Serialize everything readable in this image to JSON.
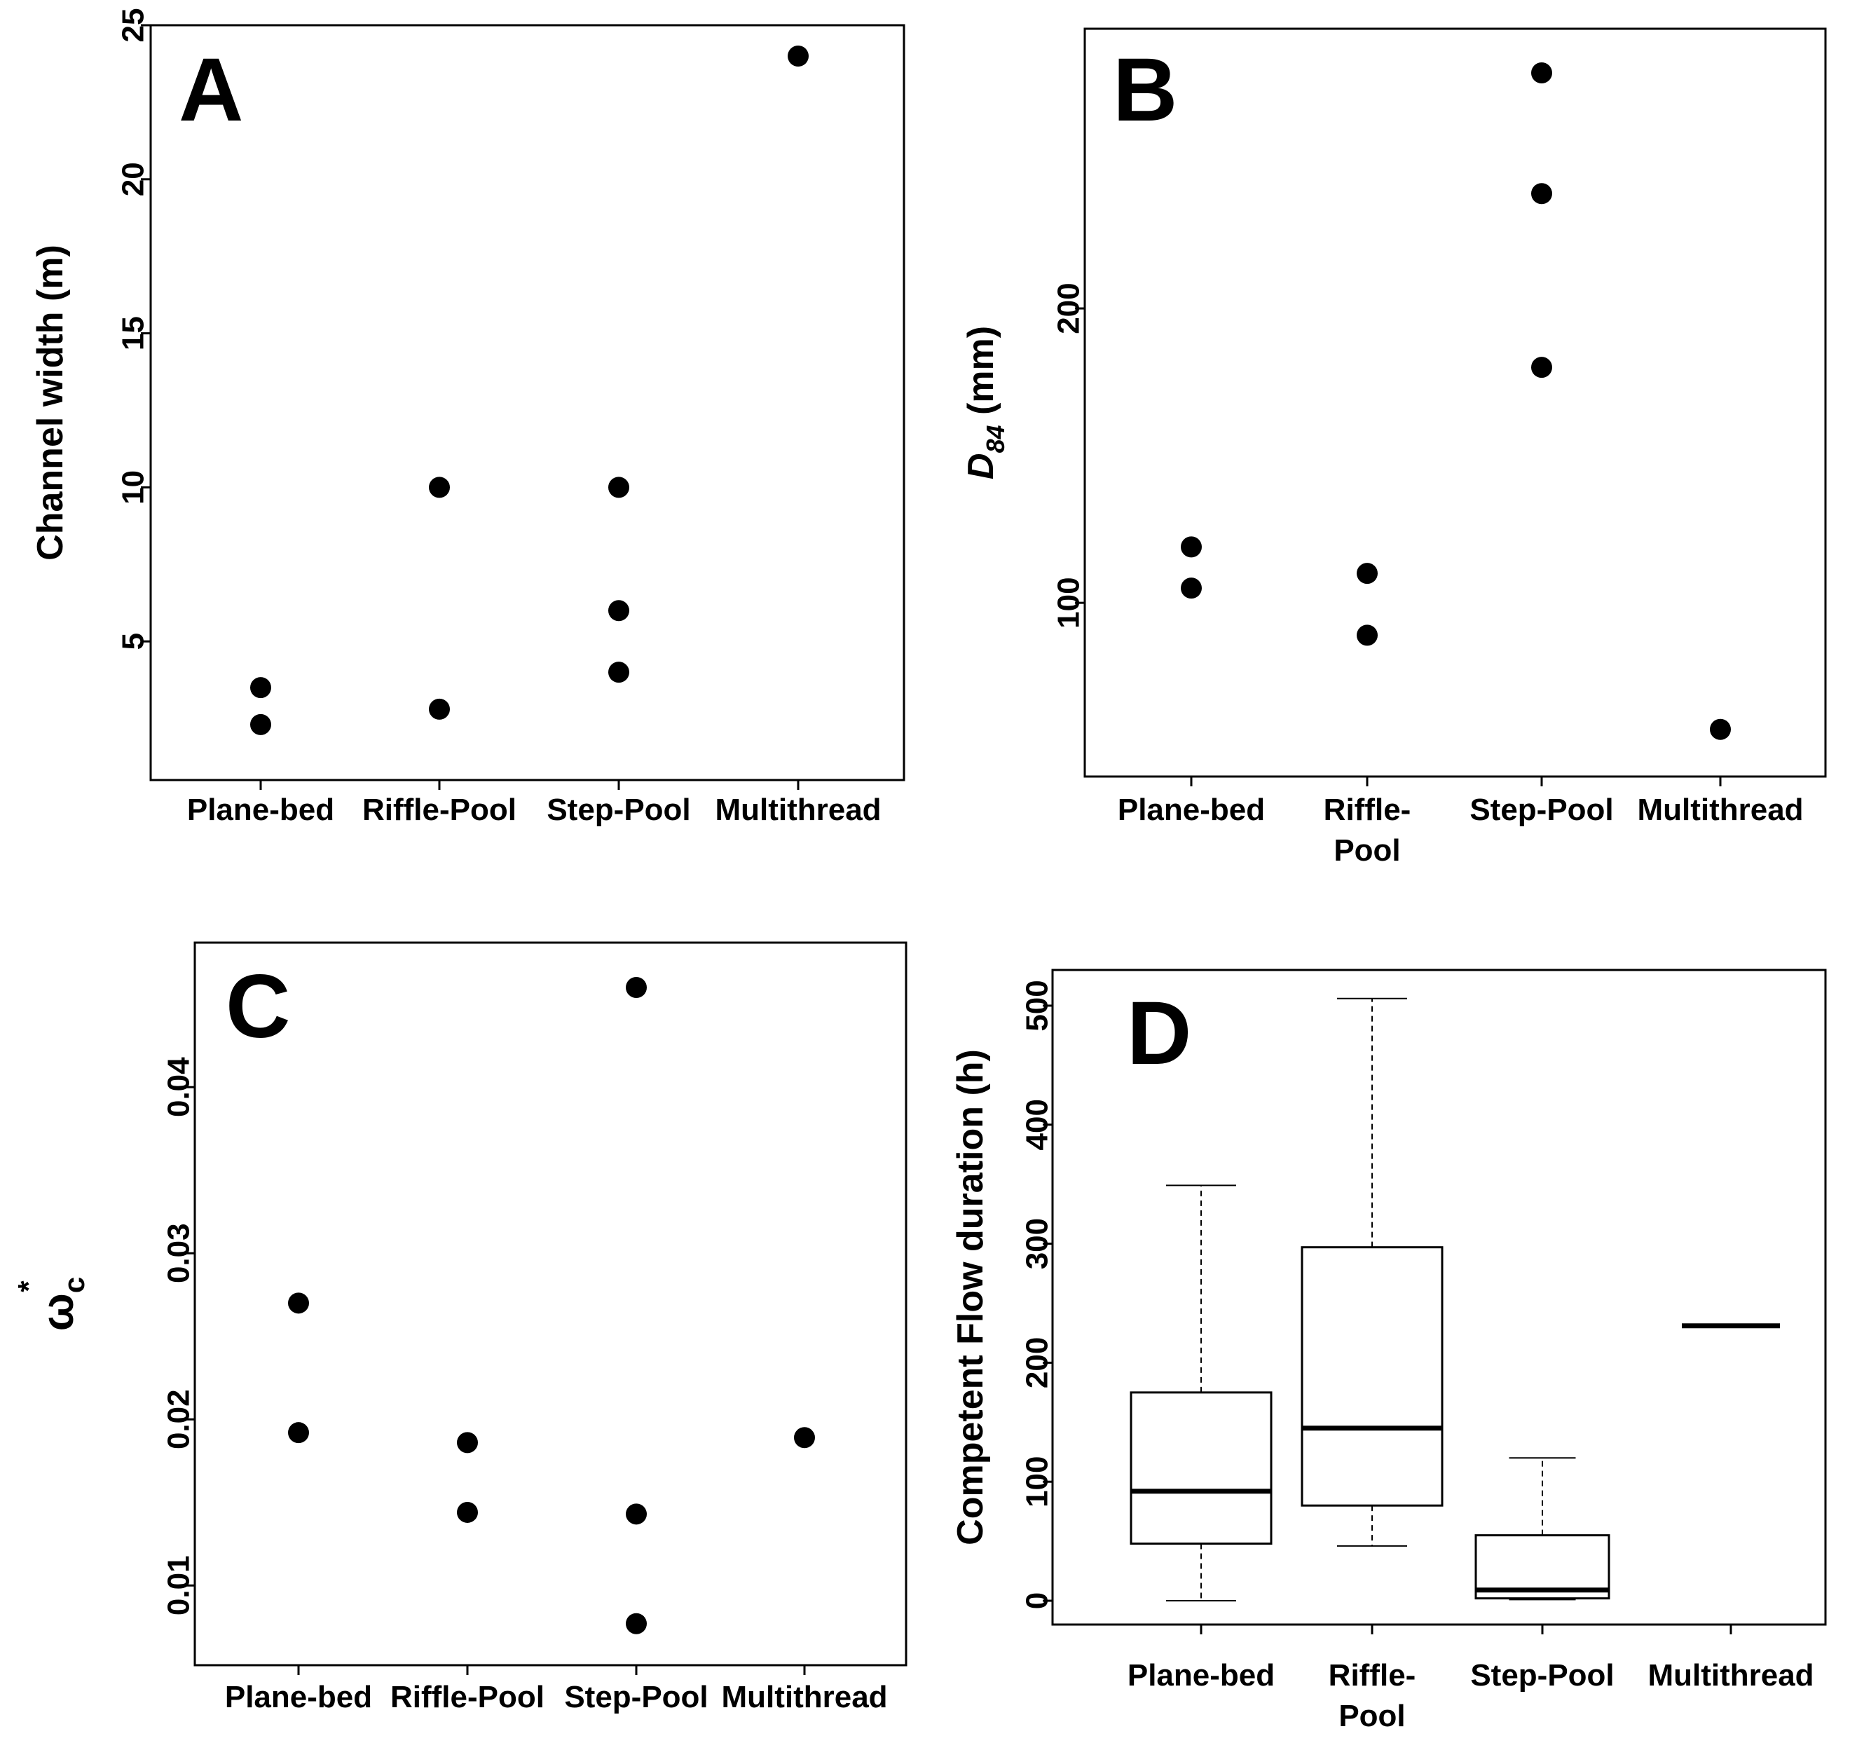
{
  "chart_data": [
    {
      "panel": "A",
      "type": "scatter",
      "ylabel": "Channel width (m)",
      "categories": [
        "Plane-bed",
        "Riffle-Pool",
        "Step-Pool",
        "Multithread"
      ],
      "category_lines": [
        [
          "Plane-bed"
        ],
        [
          "Riffle-Pool"
        ],
        [
          "Step-Pool"
        ],
        [
          "Multithread"
        ]
      ],
      "yticks": [
        "5",
        "10",
        "15",
        "20",
        "25"
      ],
      "ytick_values": [
        5,
        10,
        15,
        20,
        25
      ],
      "ylim": [
        0.5,
        25
      ],
      "points": [
        {
          "category": "Plane-bed",
          "value": 3.5
        },
        {
          "category": "Plane-bed",
          "value": 2.3
        },
        {
          "category": "Riffle-Pool",
          "value": 10
        },
        {
          "category": "Riffle-Pool",
          "value": 2.8
        },
        {
          "category": "Step-Pool",
          "value": 10
        },
        {
          "category": "Step-Pool",
          "value": 6
        },
        {
          "category": "Step-Pool",
          "value": 4
        },
        {
          "category": "Multithread",
          "value": 24
        }
      ]
    },
    {
      "panel": "B",
      "type": "scatter",
      "ylabel": "D84 (mm)",
      "ylabel_main": "D",
      "ylabel_sub": "84",
      "ylabel_rest": " (mm)",
      "categories": [
        "Plane-bed",
        "Riffle-Pool",
        "Step-Pool",
        "Multithread"
      ],
      "category_lines": [
        [
          "Plane-bed"
        ],
        [
          "Riffle-",
          "Pool"
        ],
        [
          "Step-Pool"
        ],
        [
          "Multithread"
        ]
      ],
      "yticks": [
        "100",
        "200"
      ],
      "ytick_values": [
        100,
        200
      ],
      "ylim": [
        41,
        295
      ],
      "points": [
        {
          "category": "Plane-bed",
          "value": 119
        },
        {
          "category": "Plane-bed",
          "value": 105
        },
        {
          "category": "Riffle-Pool",
          "value": 110
        },
        {
          "category": "Riffle-Pool",
          "value": 89
        },
        {
          "category": "Step-Pool",
          "value": 280
        },
        {
          "category": "Step-Pool",
          "value": 239
        },
        {
          "category": "Step-Pool",
          "value": 180
        },
        {
          "category": "Multithread",
          "value": 57
        }
      ]
    },
    {
      "panel": "C",
      "type": "scatter",
      "ylabel": "ωc*",
      "ylabel_main": "ω",
      "ylabel_sub": "c",
      "ylabel_sup": "*",
      "categories": [
        "Plane-bed",
        "Riffle-Pool",
        "Step-Pool",
        "Multithread"
      ],
      "category_lines": [
        [
          "Plane-bed"
        ],
        [
          "Riffle-Pool"
        ],
        [
          "Step-Pool"
        ],
        [
          "Multithread"
        ]
      ],
      "yticks": [
        "0.01",
        "0.02",
        "0.03",
        "0.04"
      ],
      "ytick_values": [
        0.01,
        0.02,
        0.03,
        0.04
      ],
      "ylim": [
        0.0052,
        0.0487
      ],
      "points": [
        {
          "category": "Plane-bed",
          "value": 0.027
        },
        {
          "category": "Plane-bed",
          "value": 0.0192
        },
        {
          "category": "Riffle-Pool",
          "value": 0.0186
        },
        {
          "category": "Riffle-Pool",
          "value": 0.0144
        },
        {
          "category": "Step-Pool",
          "value": 0.046
        },
        {
          "category": "Step-Pool",
          "value": 0.0143
        },
        {
          "category": "Step-Pool",
          "value": 0.0077
        },
        {
          "category": "Multithread",
          "value": 0.0189
        }
      ]
    },
    {
      "panel": "D",
      "type": "box",
      "ylabel": "Competent Flow duration (h)",
      "categories": [
        "Plane-bed",
        "Riffle-Pool",
        "Step-Pool",
        "Multithread"
      ],
      "category_lines": [
        [
          "Plane-bed"
        ],
        [
          "Riffle-",
          "Pool"
        ],
        [
          "Step-Pool"
        ],
        [
          "Multithread"
        ]
      ],
      "yticks": [
        "0",
        "100",
        "200",
        "300",
        "400",
        "500"
      ],
      "ytick_values": [
        0,
        100,
        200,
        300,
        400,
        500
      ],
      "ylim": [
        -20,
        530
      ],
      "boxes": [
        {
          "category": "Plane-bed",
          "min": 0,
          "q1": 48,
          "median": 92,
          "q3": 175,
          "max": 349
        },
        {
          "category": "Riffle-Pool",
          "min": 46,
          "q1": 80,
          "median": 145,
          "q3": 297,
          "max": 506
        },
        {
          "category": "Step-Pool",
          "min": 1,
          "q1": 2,
          "median": 9,
          "q3": 55,
          "max": 120
        },
        {
          "category": "Multithread",
          "min": 231,
          "q1": 231,
          "median": 231,
          "q3": 231,
          "max": 231
        }
      ]
    }
  ]
}
